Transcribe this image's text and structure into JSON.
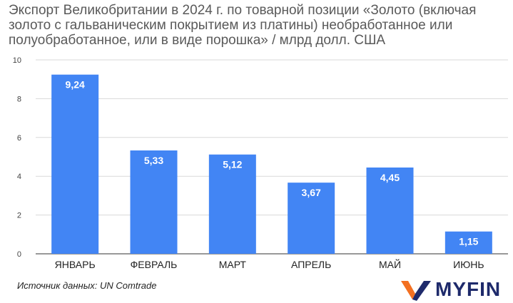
{
  "header": {
    "title": "Экспорт Великобритании в 2024 г. по товарной позиции «Золото (включая золото с гальваническим покрытием из платины) необработанное или полуобработанное, или в виде порошка» / млрд долл. США"
  },
  "footer": {
    "source": "Источник данных: UN Comtrade",
    "logo_text": "MYFIN"
  },
  "colors": {
    "bar": "#4285f4",
    "grid": "#d9d9d9",
    "axis_text": "#444444",
    "label": "#ffffff",
    "logo_orange": "#f37021",
    "logo_navy": "#1e2a6b"
  },
  "chart_data": {
    "type": "bar",
    "title": "Экспорт Великобритании в 2024 г. по товарной позиции «Золото (включая золото с гальваническим покрытием из платины) необработанное или полуобработанное, или в виде порошка» / млрд долл. США",
    "categories": [
      "ЯНВАРЬ",
      "ФЕВРАЛЬ",
      "МАРТ",
      "АПРЕЛЬ",
      "МАЙ",
      "ИЮНЬ"
    ],
    "values": [
      9.24,
      5.33,
      5.12,
      3.67,
      4.45,
      1.15
    ],
    "data_labels": [
      "9,24",
      "5,33",
      "5,12",
      "3,67",
      "4,45",
      "1,15"
    ],
    "ylim": [
      0,
      10
    ],
    "yticks": [
      0,
      2,
      4,
      6,
      8,
      10
    ],
    "grid": true,
    "legend": "none"
  }
}
